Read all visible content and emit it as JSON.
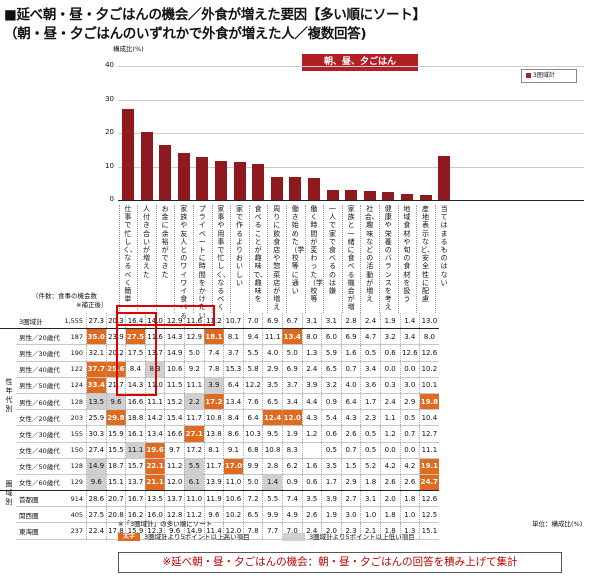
{
  "page": {
    "title_line1": "■延べ朝・昼・夕ごはんの機会／外食が増えた要因【多い順にソート】",
    "title_line2": "（朝・昼・夕ごはんのいずれかで外食が増えた人／複数回答)",
    "unit_top": "構成比(%)",
    "chart_label": "朝、昼、夕ごはん",
    "legend_label": "3圏域計",
    "column_header_line1": "（件数：食事の機会数",
    "column_header_line2": "※補正後）",
    "footnote_sort": "※「3圏域計」の多い順にソート",
    "unit_bottom": "単位：構成比(%)",
    "legend_high_box": "太字",
    "legend_high": "3圏域計より5ポイント以上高い項目",
    "legend_low": "3圏域計より5ポイント以上低い項目",
    "note": "※延べ朝・昼・夕ごはんの機会：朝・昼・夕ごはんの回答を積み上げて集計",
    "group_label_demo": "性年代別",
    "group_label_area": "圏域別"
  },
  "colors": {
    "bar": "#8e1a1f",
    "title_bg": "#b01f24",
    "high": "#e06b20",
    "low": "#cfcfcf"
  },
  "chart_data": {
    "type": "bar",
    "ylabel": "構成比(%)",
    "ylim": [
      0,
      40
    ],
    "yticks": [
      0,
      10,
      20,
      30,
      40
    ],
    "grid": true,
    "legend_placement": "top-right",
    "series": [
      {
        "name": "3圏域計"
      }
    ],
    "categories": [
      "仕事で忙しく、なるべく簡単に済ませたい",
      "人付き合いが増えた",
      "お金に余裕ができた",
      "家族や友人とのワイワイ食べるのがレジャーになっている",
      "プライベートに時間をかけたい、なるべく簡単に済ませたい",
      "家事や用事で忙しく、なるべく簡単に済ませたい",
      "家で作るよりおいしい",
      "食べることが趣味で、趣味を充実したい",
      "周りに飲食店や惣菜店が増えた",
      "働き始めた（学校等に通い始めた）",
      "働く時間が変わった（学校等に通う時間が変わった）",
      "一人で家で食べるのは嫌",
      "家族と一緒に食べる機会が増えた",
      "社会、趣味などの活動が増えた",
      "健康や栄養のバランスを考えたメニューが増えた",
      "地域食材や旬の食材を扱う店が増えた",
      "産地表示など、安全性に配慮したメニューが増えた",
      "当てはまるものはない"
    ],
    "category_texts": [
      "仕事で忙しく、なるべく簡単",
      "人付き合いが増えた",
      "お金に余裕ができた",
      "家族や友人とのワイワイ食べる",
      "プライベートに時間をかけたい",
      "家事や用事で忙しく、なるべく",
      "家で作るよりおいしい",
      "食べることが趣味で、趣味を",
      "周りに飲食店や惣菜店が増え",
      "働き始めた（学校等に通い",
      "働く時間が変わった（学校等",
      "一人で家で食べるのは嫌",
      "家族と一緒に食べる機会が増",
      "社会、趣味などの活動が増え",
      "健康や栄養のバランスを考え",
      "地域食材や旬の食材を扱う",
      "産地表示など、安全性に配慮",
      "当てはまるものはない"
    ],
    "values": [
      27.3,
      20.3,
      16.4,
      14.0,
      12.9,
      11.6,
      11.2,
      10.7,
      7.0,
      6.9,
      6.7,
      3.1,
      3.1,
      2.8,
      2.4,
      1.9,
      1.4,
      13.0
    ],
    "table": {
      "rows": [
        {
          "label": "3圏域計",
          "n": "1,555",
          "values": [
            "27.3",
            "20.3",
            "16.4",
            "14.0",
            "12.9",
            "11.6",
            "11.2",
            "10.7",
            "7.0",
            "6.9",
            "6.7",
            "3.1",
            "3.1",
            "2.8",
            "2.4",
            "1.9",
            "1.4",
            "13.0"
          ]
        },
        {
          "label": "男性／20歳代",
          "n": "187",
          "values": [
            "35.0",
            "23.9",
            "27.5",
            "11.6",
            "14.3",
            "12.9",
            "18.1",
            "8.1",
            "9.4",
            "11.1",
            "13.4",
            "8.0",
            "6.0",
            "6.9",
            "4.7",
            "3.2",
            "3.4",
            "8.0"
          ]
        },
        {
          "label": "男性／30歳代",
          "n": "190",
          "values": [
            "32.1",
            "20.2",
            "17.5",
            "13.7",
            "14.9",
            "5.0",
            "7.4",
            "3.7",
            "5.5",
            "4.0",
            "5.0",
            "1.3",
            "5.9",
            "1.6",
            "0.5",
            "0.6",
            "12.6",
            "12.6"
          ]
        },
        {
          "label": "男性／40歳代",
          "n": "122",
          "values": [
            "37.7",
            "25.6",
            "8.4",
            "8.3",
            "10.6",
            "9.2",
            "7.8",
            "15.3",
            "5.8",
            "2.9",
            "6.9",
            "2.4",
            "6.5",
            "0.7",
            "3.4",
            "0.0",
            "0.0",
            "10.2"
          ]
        },
        {
          "label": "男性／50歳代",
          "n": "124",
          "values": [
            "33.4",
            "21.7",
            "14.3",
            "11.0",
            "11.5",
            "11.1",
            "3.9",
            "6.4",
            "12.2",
            "3.5",
            "3.7",
            "3.9",
            "3.2",
            "4.0",
            "3.6",
            "0.3",
            "3.0",
            "10.1"
          ]
        },
        {
          "label": "男性／60歳代",
          "n": "128",
          "values": [
            "13.5",
            "9.6",
            "16.6",
            "11.1",
            "15.2",
            "2.2",
            "17.2",
            "13.4",
            "7.6",
            "6.5",
            "3.4",
            "4.4",
            "0.9",
            "6.4",
            "1.7",
            "2.4",
            "2.9",
            "19.8"
          ]
        },
        {
          "label": "女性／20歳代",
          "n": "203",
          "values": [
            "25.9",
            "29.8",
            "18.8",
            "14.2",
            "15.4",
            "11.7",
            "10.8",
            "8.4",
            "6.4",
            "12.4",
            "12.0",
            "4.3",
            "5.4",
            "4.3",
            "2.3",
            "1.1",
            "0.5",
            "10.4"
          ]
        },
        {
          "label": "女性／30歳代",
          "n": "155",
          "values": [
            "30.3",
            "15.9",
            "16.1",
            "13.4",
            "16.6",
            "27.1",
            "13.8",
            "8.6",
            "10.3",
            "9.5",
            "1.9",
            "1.2",
            "0.6",
            "2.6",
            "0.5",
            "1.2",
            "0.7",
            "12.7"
          ]
        },
        {
          "label": "女性／40歳代",
          "n": "150",
          "values": [
            "27.4",
            "15.5",
            "11.1",
            "19.6",
            "9.7",
            "17.2",
            "8.1",
            "9.1",
            "6.8",
            "10.8",
            "8.3",
            "",
            "0.5",
            "0.7",
            "0.5",
            "0.0",
            "0.0",
            "11.1"
          ]
        },
        {
          "label": "女性／50歳代",
          "n": "128",
          "values": [
            "14.9",
            "18.7",
            "15.7",
            "22.1",
            "11.2",
            "5.5",
            "11.7",
            "17.0",
            "9.9",
            "2.8",
            "6.2",
            "1.6",
            "3.5",
            "1.5",
            "5.2",
            "4.2",
            "4.2",
            "19.1"
          ]
        },
        {
          "label": "女性／60歳代",
          "n": "129",
          "values": [
            "9.6",
            "15.1",
            "13.7",
            "21.1",
            "12.0",
            "6.1",
            "13.9",
            "11.0",
            "5.0",
            "1.4",
            "0.9",
            "0.6",
            "1.7",
            "2.9",
            "1.8",
            "2.6",
            "2.6",
            "24.7"
          ]
        },
        {
          "label": "首都圏",
          "n": "914",
          "values": [
            "28.6",
            "20.7",
            "16.7",
            "13.5",
            "13.7",
            "11.0",
            "11.9",
            "10.6",
            "7.2",
            "5.5",
            "7.4",
            "3.5",
            "3.9",
            "2.7",
            "3.1",
            "2.0",
            "1.8",
            "12.6"
          ]
        },
        {
          "label": "関西圏",
          "n": "405",
          "values": [
            "27.5",
            "20.8",
            "16.2",
            "16.0",
            "12.8",
            "11.2",
            "9.6",
            "10.2",
            "6.5",
            "9.9",
            "4.9",
            "2.6",
            "1.9",
            "3.0",
            "1.0",
            "1.8",
            "1.0",
            "12.5"
          ]
        },
        {
          "label": "東海圏",
          "n": "237",
          "values": [
            "22.4",
            "17.8",
            "15.9",
            "12.3",
            "9.6",
            "14.9",
            "11.4",
            "12.0",
            "7.8",
            "7.7",
            "7.0",
            "2.4",
            "2.0",
            "2.3",
            "2.1",
            "1.8",
            "1.3",
            "15.1"
          ]
        }
      ],
      "highlights_high": [
        [
          1,
          0
        ],
        [
          1,
          2
        ],
        [
          1,
          6
        ],
        [
          1,
          10
        ],
        [
          3,
          0
        ],
        [
          3,
          1
        ],
        [
          4,
          0
        ],
        [
          5,
          6
        ],
        [
          5,
          17
        ],
        [
          6,
          1
        ],
        [
          6,
          9
        ],
        [
          6,
          10
        ],
        [
          7,
          5
        ],
        [
          8,
          3
        ],
        [
          9,
          3
        ],
        [
          9,
          7
        ],
        [
          9,
          17
        ],
        [
          10,
          3
        ],
        [
          10,
          17
        ]
      ],
      "highlights_low": [
        [
          3,
          3
        ],
        [
          4,
          6
        ],
        [
          5,
          0
        ],
        [
          5,
          1
        ],
        [
          5,
          5
        ],
        [
          8,
          2
        ],
        [
          9,
          0
        ],
        [
          9,
          5
        ],
        [
          10,
          0
        ],
        [
          10,
          5
        ],
        [
          10,
          9
        ]
      ]
    }
  }
}
